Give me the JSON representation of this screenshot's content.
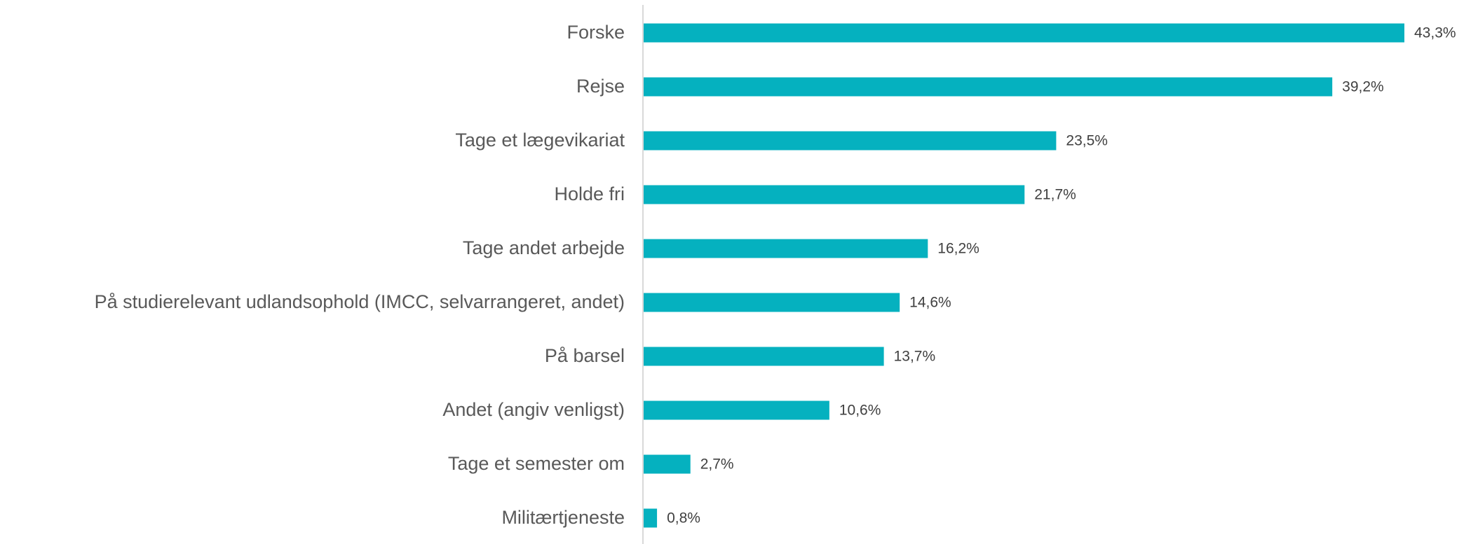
{
  "chart_data": {
    "type": "bar",
    "orientation": "horizontal",
    "color": "#05b1bf",
    "categories": [
      "Forske",
      "Rejse",
      "Tage et lægevikariat",
      "Holde fri",
      "Tage andet arbejde",
      "På studierelevant udlandsophold (IMCC, selvarrangeret, andet)",
      "På barsel",
      "Andet (angiv venligst)",
      "Tage et semester om",
      "Militærtjeneste"
    ],
    "values": [
      43.3,
      39.2,
      23.5,
      21.7,
      16.2,
      14.6,
      13.7,
      10.6,
      2.7,
      0.8
    ],
    "value_labels": [
      "43,3%",
      "39,2%",
      "23,5%",
      "21,7%",
      "16,2%",
      "14,6%",
      "13,7%",
      "10,6%",
      "2,7%",
      "0,8%"
    ]
  }
}
